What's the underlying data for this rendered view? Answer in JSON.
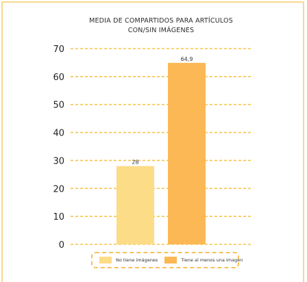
{
  "chart_data": {
    "type": "bar",
    "title": "MEDIA DE COMPARTIDOS PARA ARTÍCULOS CON/SIN IMÁGENES",
    "title_lines": [
      "MEDIA DE COMPARTIDOS PARA ARTÍCULOS",
      "CON/SIN IMÁGENES"
    ],
    "categories": [
      "No tiene imágenes",
      "Tiene al menos una imagen"
    ],
    "values": [
      28,
      64.9
    ],
    "data_labels": [
      "28",
      "64,9"
    ],
    "colors": [
      "#fddc87",
      "#fbb855"
    ],
    "grid_color": "#f8c346",
    "ylim": [
      0,
      70
    ],
    "yticks": [
      0,
      10,
      20,
      30,
      40,
      50,
      60,
      70
    ],
    "xlabel": "",
    "ylabel": "",
    "grid": true,
    "legend_position": "bottom"
  }
}
